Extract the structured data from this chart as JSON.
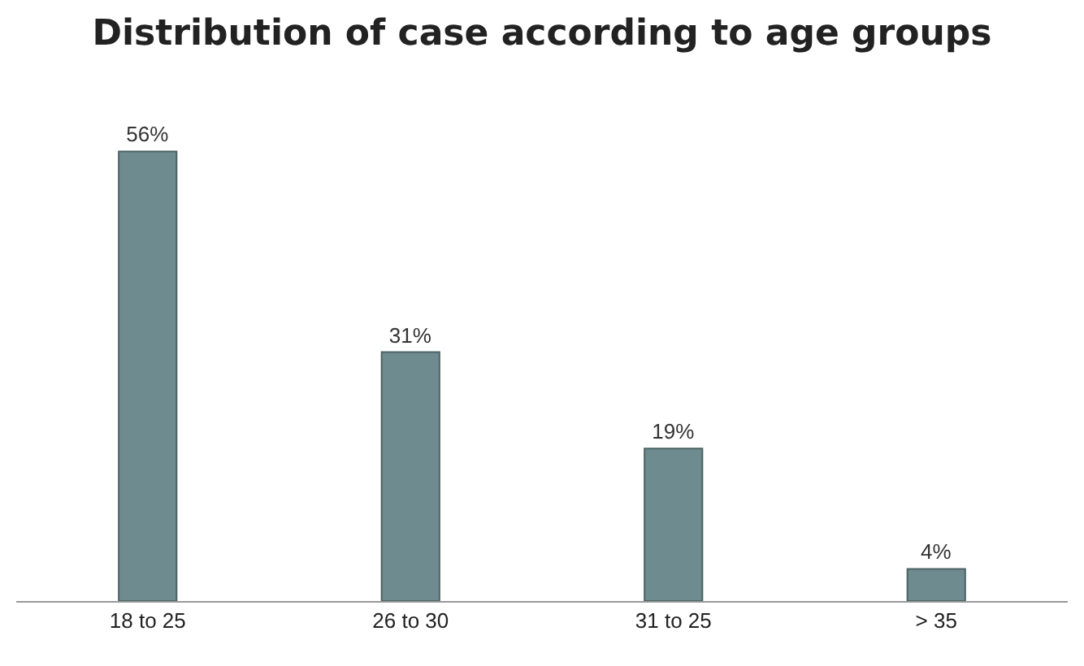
{
  "chart_data": {
    "type": "bar",
    "title": "Distribution of case according to age groups",
    "categories": [
      "18 to 25",
      "26 to 30",
      "31 to 25",
      "> 35"
    ],
    "values": [
      56,
      31,
      19,
      4
    ],
    "value_labels": [
      "56%",
      "31%",
      "19%",
      "4%"
    ],
    "color": "#6e8b8f"
  }
}
